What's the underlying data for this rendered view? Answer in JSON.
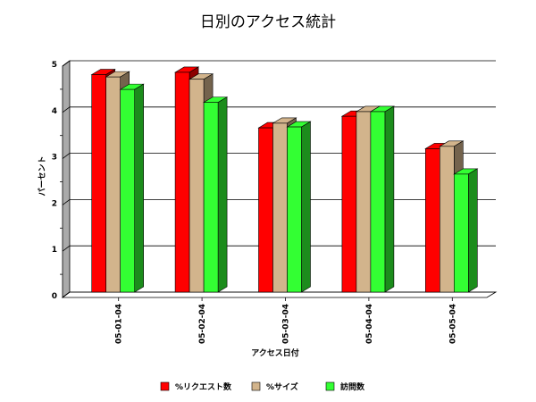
{
  "chart_data": {
    "type": "bar",
    "title": "日別のアクセス統計",
    "xlabel": "アクセス日付",
    "ylabel": "パーセント",
    "ylim": [
      0,
      5
    ],
    "yticks": [
      "0",
      "1",
      "2",
      "3",
      "4",
      "5"
    ],
    "categories": [
      "05-01-04",
      "05-02-04",
      "05-03-04",
      "05-04-04",
      "05-05-04"
    ],
    "series": [
      {
        "name": "%リクエスト数",
        "color": "#ff0000",
        "values": [
          4.7,
          4.75,
          3.55,
          3.8,
          3.1
        ]
      },
      {
        "name": "%サイズ",
        "color": "#d2b48c",
        "values": [
          4.65,
          4.6,
          3.65,
          3.9,
          3.15
        ]
      },
      {
        "name": "訪問数",
        "color": "#33ff33",
        "values": [
          4.38,
          4.1,
          3.57,
          3.9,
          2.55
        ]
      }
    ],
    "grid": true,
    "legend": "bottom",
    "depth_3d": true
  }
}
